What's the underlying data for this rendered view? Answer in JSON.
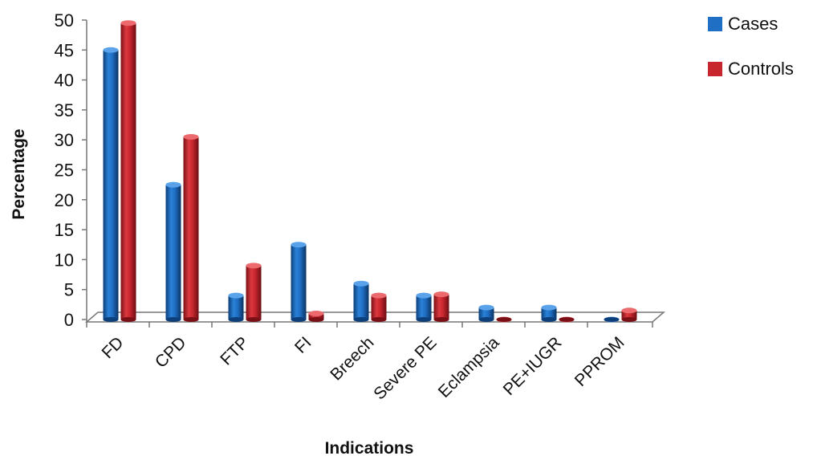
{
  "chart_data": {
    "type": "bar",
    "title": "",
    "xlabel": "Indications",
    "ylabel": "Percentage",
    "ylim": [
      0,
      50
    ],
    "yticks": [
      "0",
      "5",
      "10",
      "15",
      "20",
      "25",
      "30",
      "35",
      "40",
      "45",
      "50"
    ],
    "categories": [
      "FD",
      "CPD",
      "FTP",
      "FI",
      "Breech",
      "Severe PE",
      "Eclampsia",
      "PE+IUGR",
      "PPROM"
    ],
    "series": [
      {
        "name": "Cases",
        "color": "#1f6fc4",
        "values": [
          45,
          22.5,
          4,
          12.5,
          6,
          4,
          2,
          2,
          0
        ]
      },
      {
        "name": "Controls",
        "color": "#c8262e",
        "values": [
          49.5,
          30.5,
          9,
          1,
          4,
          4.2,
          0,
          0,
          1.5
        ]
      }
    ],
    "legend": "top-right",
    "grid": false
  }
}
